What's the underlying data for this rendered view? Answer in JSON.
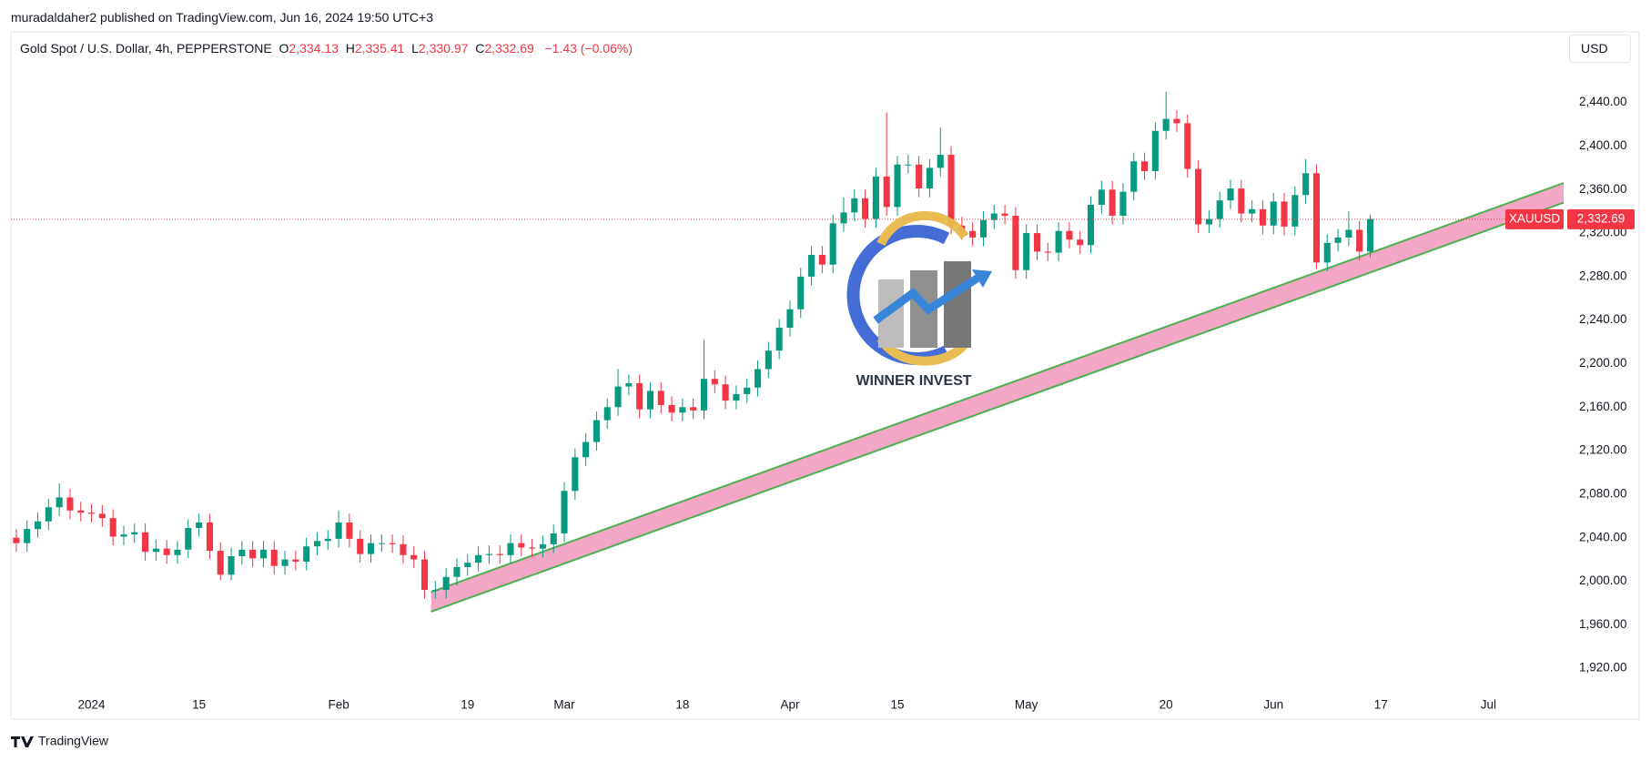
{
  "header": {
    "published": "muradaldaher2 published on TradingView.com, Jun 16, 2024 19:50 UTC+3",
    "symbol": "Gold Spot / U.S. Dollar, 4h, PEPPERSTONE",
    "ohlc": [
      {
        "key": "O",
        "value": "2,334.13"
      },
      {
        "key": "H",
        "value": "2,335.41"
      },
      {
        "key": "L",
        "value": "2,330.97"
      },
      {
        "key": "C",
        "value": "2,332.69"
      }
    ],
    "change": "−1.43 (−0.06%)",
    "currency": "USD"
  },
  "footer": "TradingView",
  "watermark": "WINNER INVEST",
  "chart_data": {
    "type": "candlestick",
    "up_color": "#089981",
    "down_color": "#f23645",
    "grid": false,
    "xlim": [
      -7.5,
      137
    ],
    "ylim": [
      1900,
      2505
    ],
    "xticks": [
      {
        "value": 0,
        "label": "2024"
      },
      {
        "value": 10,
        "label": "15"
      },
      {
        "value": 23,
        "label": "Feb"
      },
      {
        "value": 35,
        "label": "19"
      },
      {
        "value": 44,
        "label": "Mar"
      },
      {
        "value": 55,
        "label": "18"
      },
      {
        "value": 65,
        "label": "Apr"
      },
      {
        "value": 75,
        "label": "15"
      },
      {
        "value": 87,
        "label": "May"
      },
      {
        "value": 100,
        "label": "20"
      },
      {
        "value": 110,
        "label": "Jun"
      },
      {
        "value": 120,
        "label": "17"
      },
      {
        "value": 130,
        "label": "Jul"
      }
    ],
    "yticks": [
      {
        "value": 1920,
        "label": "1,920.00"
      },
      {
        "value": 1960,
        "label": "1,960.00"
      },
      {
        "value": 2000,
        "label": "2,000.00"
      },
      {
        "value": 2040,
        "label": "2,040.00"
      },
      {
        "value": 2080,
        "label": "2,080.00"
      },
      {
        "value": 2120,
        "label": "2,120.00"
      },
      {
        "value": 2160,
        "label": "2,160.00"
      },
      {
        "value": 2200,
        "label": "2,200.00"
      },
      {
        "value": 2240,
        "label": "2,240.00"
      },
      {
        "value": 2280,
        "label": "2,280.00"
      },
      {
        "value": 2320,
        "label": "2,320.00"
      },
      {
        "value": 2360,
        "label": "2,360.00"
      },
      {
        "value": 2400,
        "label": "2,400.00"
      },
      {
        "value": 2440,
        "label": "2,440.00"
      }
    ],
    "last_price": {
      "name": "XAUUSD",
      "value": 2332.69,
      "label": "2,332.69",
      "color": "#f23645"
    },
    "channel": {
      "x": [
        31.6,
        137
      ],
      "upper": [
        1990,
        2366
      ],
      "lower": [
        1972,
        2348
      ],
      "fill": "#f4a6c6",
      "line_color": "#4caf50"
    },
    "series": {
      "x": [
        -7,
        -6,
        -5,
        -4,
        -3,
        -2,
        -1,
        0,
        1,
        2,
        3,
        4,
        5,
        6,
        7,
        8,
        9,
        10,
        11,
        12,
        13,
        14,
        15,
        16,
        17,
        18,
        19,
        20,
        21,
        22,
        23,
        24,
        25,
        26,
        27,
        28,
        29,
        30,
        31,
        32,
        33,
        34,
        35,
        36,
        37,
        38,
        39,
        40,
        41,
        42,
        43,
        44,
        45,
        46,
        47,
        48,
        49,
        50,
        51,
        52,
        53,
        54,
        55,
        56,
        57,
        58,
        59,
        60,
        61,
        62,
        63,
        64,
        65,
        66,
        67,
        68,
        69,
        70,
        71,
        72,
        73,
        74,
        75,
        76,
        77,
        78,
        79,
        80,
        81,
        82,
        83,
        84,
        85,
        86,
        87,
        88,
        89,
        90,
        91,
        92,
        93,
        94,
        95,
        96,
        97,
        98,
        99,
        100,
        101,
        102,
        103,
        104,
        105,
        106,
        107,
        108,
        109,
        110,
        111,
        112,
        113,
        114,
        115,
        116,
        117,
        118,
        119
      ],
      "open": [
        2040,
        2035,
        2048,
        2055,
        2068,
        2077,
        2065,
        2063,
        2062,
        2058,
        2041,
        2043,
        2045,
        2027,
        2030,
        2024,
        2029,
        2049,
        2054,
        2028,
        2006,
        2023,
        2029,
        2021,
        2029,
        2014,
        2020,
        2018,
        2032,
        2037,
        2039,
        2054,
        2039,
        2025,
        2035,
        2035,
        2034,
        2024,
        2020,
        1992,
        1992,
        2004,
        2013,
        2017,
        2024,
        2025,
        2024,
        2035,
        2031,
        2030,
        2034,
        2044,
        2083,
        2114,
        2128,
        2148,
        2160,
        2179,
        2182,
        2158,
        2175,
        2162,
        2155,
        2160,
        2157,
        2186,
        2181,
        2166,
        2172,
        2178,
        2195,
        2212,
        2233,
        2250,
        2280,
        2300,
        2291,
        2329,
        2339,
        2352,
        2333,
        2372,
        2344,
        2383,
        2383,
        2361,
        2380,
        2392,
        2327,
        2322,
        2316,
        2332,
        2338,
        2336,
        2286,
        2320,
        2303,
        2302,
        2322,
        2314,
        2309,
        2346,
        2360,
        2336,
        2358,
        2386,
        2377,
        2414,
        2425,
        2421,
        2379,
        2328,
        2333,
        2350,
        2361,
        2338,
        2342,
        2327,
        2349,
        2326,
        2355,
        2375,
        2293,
        2311,
        2316,
        2323,
        2303
      ],
      "high": [
        2048,
        2056,
        2063,
        2076,
        2090,
        2085,
        2073,
        2071,
        2070,
        2066,
        2051,
        2053,
        2053,
        2038,
        2038,
        2037,
        2057,
        2062,
        2062,
        2036,
        2031,
        2037,
        2037,
        2037,
        2037,
        2028,
        2028,
        2040,
        2045,
        2047,
        2065,
        2062,
        2047,
        2043,
        2043,
        2043,
        2042,
        2032,
        2028,
        2000,
        2012,
        2021,
        2025,
        2032,
        2033,
        2033,
        2043,
        2043,
        2039,
        2042,
        2052,
        2091,
        2122,
        2136,
        2156,
        2168,
        2195,
        2190,
        2190,
        2183,
        2183,
        2170,
        2168,
        2168,
        2222,
        2194,
        2189,
        2180,
        2186,
        2203,
        2220,
        2241,
        2258,
        2288,
        2308,
        2308,
        2337,
        2353,
        2360,
        2360,
        2380,
        2431,
        2391,
        2392,
        2391,
        2388,
        2417,
        2400,
        2335,
        2330,
        2340,
        2346,
        2346,
        2344,
        2328,
        2328,
        2311,
        2330,
        2330,
        2322,
        2354,
        2368,
        2368,
        2366,
        2394,
        2394,
        2422,
        2450,
        2433,
        2429,
        2387,
        2341,
        2358,
        2369,
        2369,
        2350,
        2350,
        2357,
        2357,
        2363,
        2388,
        2383,
        2319,
        2324,
        2340,
        2331,
        2337
      ],
      "low": [
        2027,
        2027,
        2040,
        2047,
        2060,
        2057,
        2055,
        2054,
        2050,
        2033,
        2033,
        2035,
        2019,
        2019,
        2016,
        2016,
        2021,
        2041,
        2020,
        2001,
        2001,
        2015,
        2013,
        2013,
        2006,
        2006,
        2010,
        2010,
        2024,
        2029,
        2031,
        2031,
        2017,
        2017,
        2027,
        2026,
        2016,
        2012,
        1984,
        1984,
        1984,
        1996,
        2005,
        2009,
        2016,
        2016,
        2016,
        2023,
        2022,
        2022,
        2026,
        2036,
        2075,
        2106,
        2120,
        2140,
        2152,
        2171,
        2150,
        2150,
        2154,
        2147,
        2147,
        2149,
        2149,
        2173,
        2158,
        2158,
        2164,
        2170,
        2187,
        2204,
        2225,
        2242,
        2272,
        2283,
        2283,
        2321,
        2331,
        2325,
        2325,
        2336,
        2336,
        2375,
        2353,
        2353,
        2372,
        2319,
        2314,
        2308,
        2308,
        2324,
        2328,
        2278,
        2278,
        2295,
        2294,
        2294,
        2306,
        2301,
        2301,
        2338,
        2328,
        2328,
        2350,
        2369,
        2369,
        2406,
        2413,
        2371,
        2320,
        2320,
        2325,
        2342,
        2330,
        2330,
        2319,
        2319,
        2318,
        2318,
        2347,
        2287,
        2285,
        2303,
        2308,
        2295,
        2298
      ],
      "close": [
        2035,
        2048,
        2055,
        2068,
        2077,
        2065,
        2063,
        2062,
        2058,
        2041,
        2043,
        2045,
        2027,
        2030,
        2024,
        2029,
        2049,
        2054,
        2028,
        2006,
        2023,
        2029,
        2021,
        2029,
        2014,
        2020,
        2018,
        2032,
        2037,
        2039,
        2054,
        2039,
        2025,
        2035,
        2035,
        2034,
        2024,
        2020,
        1992,
        1992,
        2004,
        2013,
        2017,
        2024,
        2025,
        2024,
        2035,
        2031,
        2030,
        2034,
        2044,
        2083,
        2114,
        2128,
        2148,
        2160,
        2179,
        2182,
        2158,
        2175,
        2162,
        2155,
        2160,
        2157,
        2186,
        2181,
        2166,
        2172,
        2178,
        2195,
        2212,
        2233,
        2250,
        2280,
        2300,
        2291,
        2329,
        2339,
        2352,
        2333,
        2372,
        2344,
        2383,
        2383,
        2361,
        2380,
        2392,
        2327,
        2322,
        2316,
        2332,
        2338,
        2336,
        2286,
        2320,
        2303,
        2302,
        2322,
        2314,
        2309,
        2346,
        2360,
        2336,
        2358,
        2386,
        2377,
        2414,
        2425,
        2421,
        2379,
        2328,
        2333,
        2350,
        2361,
        2338,
        2342,
        2327,
        2349,
        2326,
        2355,
        2375,
        2293,
        2311,
        2316,
        2323,
        2303,
        2333
      ]
    }
  }
}
